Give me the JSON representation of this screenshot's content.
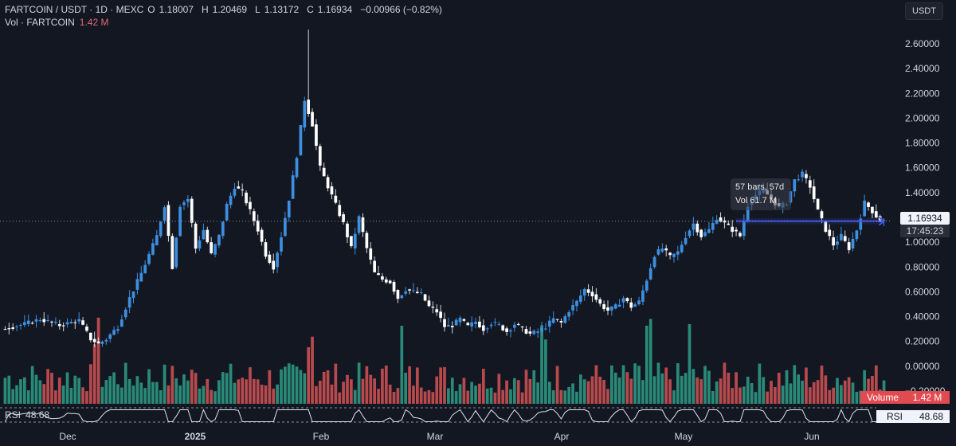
{
  "header": {
    "symbol": "FARTCOIN / USDT · 1D · MEXC",
    "open_label": "O",
    "open": "1.18007",
    "high_label": "H",
    "high": "1.20469",
    "low_label": "L",
    "low": "1.13172",
    "close_label": "C",
    "close": "1.16934",
    "change": "−0.00966 (−0.82%)",
    "volume_label": "Vol · FARTCOIN",
    "volume": "1.42 M"
  },
  "currency_button": "USDT",
  "last_price": "1.16934",
  "countdown": "17:45:23",
  "volume_tag": {
    "label": "Volume",
    "value": "1.42 M"
  },
  "rsi": {
    "label": "RSI",
    "value": "48.68"
  },
  "tooltip": {
    "bars": "57 bars, 57d",
    "vol": "Vol 61.7 M"
  },
  "colors": {
    "up": "#3d8fe0",
    "down_body": "#ffffff",
    "vol_up": "#2a8a78",
    "vol_down": "#b84a4d",
    "measure": "#3a52e0"
  },
  "chart_data": {
    "type": "candlestick",
    "y_ticks": [
      "2.60000",
      "2.40000",
      "2.20000",
      "2.00000",
      "1.80000",
      "1.60000",
      "1.40000",
      "1.20000",
      "1.00000",
      "0.80000",
      "0.60000",
      "0.40000",
      "0.20000",
      "0.00000",
      "−0.20000"
    ],
    "ylim": [
      -0.2,
      2.7
    ],
    "x_ticks": [
      "Dec",
      "2025",
      "Feb",
      "Mar",
      "Apr",
      "May",
      "Jun"
    ],
    "close_path": [
      [
        0,
        0.3
      ],
      [
        6,
        0.34
      ],
      [
        10,
        0.38
      ],
      [
        15,
        0.33
      ],
      [
        20,
        0.37
      ],
      [
        23,
        0.22
      ],
      [
        25,
        0.18
      ],
      [
        27,
        0.22
      ],
      [
        30,
        0.32
      ],
      [
        33,
        0.55
      ],
      [
        36,
        0.75
      ],
      [
        38,
        0.9
      ],
      [
        40,
        1.05
      ],
      [
        42,
        1.3
      ],
      [
        44,
        0.8
      ],
      [
        46,
        1.3
      ],
      [
        48,
        1.35
      ],
      [
        50,
        0.95
      ],
      [
        52,
        1.1
      ],
      [
        54,
        0.9
      ],
      [
        56,
        1.05
      ],
      [
        58,
        1.3
      ],
      [
        60,
        1.45
      ],
      [
        62,
        1.4
      ],
      [
        64,
        1.25
      ],
      [
        66,
        1.1
      ],
      [
        68,
        0.9
      ],
      [
        70,
        0.8
      ],
      [
        72,
        1.05
      ],
      [
        74,
        1.35
      ],
      [
        76,
        1.7
      ],
      [
        78,
        2.15
      ],
      [
        80,
        1.95
      ],
      [
        82,
        1.6
      ],
      [
        84,
        1.45
      ],
      [
        86,
        1.3
      ],
      [
        88,
        1.15
      ],
      [
        90,
        0.95
      ],
      [
        92,
        1.2
      ],
      [
        94,
        0.95
      ],
      [
        96,
        0.75
      ],
      [
        98,
        0.7
      ],
      [
        100,
        0.68
      ],
      [
        102,
        0.55
      ],
      [
        104,
        0.62
      ],
      [
        106,
        0.6
      ],
      [
        108,
        0.58
      ],
      [
        110,
        0.48
      ],
      [
        112,
        0.44
      ],
      [
        114,
        0.32
      ],
      [
        116,
        0.33
      ],
      [
        118,
        0.38
      ],
      [
        120,
        0.32
      ],
      [
        122,
        0.36
      ],
      [
        124,
        0.3
      ],
      [
        126,
        0.35
      ],
      [
        128,
        0.33
      ],
      [
        130,
        0.28
      ],
      [
        132,
        0.34
      ],
      [
        134,
        0.3
      ],
      [
        136,
        0.26
      ],
      [
        138,
        0.28
      ],
      [
        140,
        0.32
      ],
      [
        142,
        0.38
      ],
      [
        144,
        0.35
      ],
      [
        146,
        0.45
      ],
      [
        148,
        0.52
      ],
      [
        150,
        0.62
      ],
      [
        152,
        0.58
      ],
      [
        154,
        0.5
      ],
      [
        156,
        0.45
      ],
      [
        158,
        0.48
      ],
      [
        160,
        0.55
      ],
      [
        162,
        0.48
      ],
      [
        164,
        0.52
      ],
      [
        166,
        0.7
      ],
      [
        168,
        0.9
      ],
      [
        170,
        0.95
      ],
      [
        172,
        0.88
      ],
      [
        174,
        0.92
      ],
      [
        176,
        1.05
      ],
      [
        178,
        1.15
      ],
      [
        180,
        1.05
      ],
      [
        182,
        1.1
      ],
      [
        184,
        1.2
      ],
      [
        186,
        1.15
      ],
      [
        188,
        1.1
      ],
      [
        190,
        1.05
      ],
      [
        192,
        1.3
      ],
      [
        194,
        1.38
      ],
      [
        196,
        1.42
      ],
      [
        198,
        1.35
      ],
      [
        200,
        1.28
      ],
      [
        202,
        1.32
      ],
      [
        204,
        1.5
      ],
      [
        206,
        1.55
      ],
      [
        208,
        1.45
      ],
      [
        210,
        1.25
      ],
      [
        212,
        1.1
      ],
      [
        214,
        0.98
      ],
      [
        216,
        1.05
      ],
      [
        218,
        0.95
      ],
      [
        220,
        1.1
      ],
      [
        222,
        1.32
      ],
      [
        224,
        1.25
      ],
      [
        226,
        1.17
      ]
    ],
    "measure_line": {
      "from_x": 188,
      "to_x": 226,
      "y": 1.17
    },
    "rsi_last": 48.68
  }
}
